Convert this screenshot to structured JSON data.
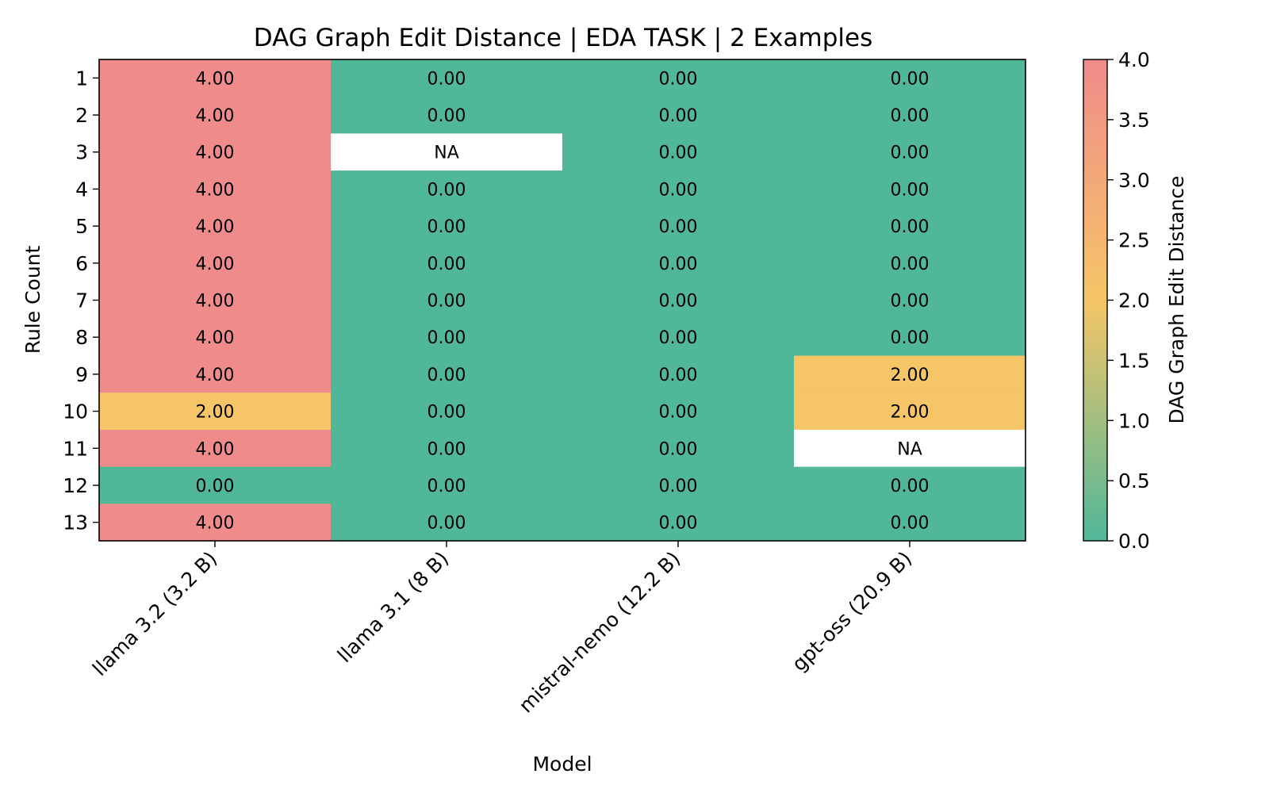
{
  "chart_data": {
    "type": "heatmap",
    "title": "DAG Graph Edit Distance | EDA TASK | 2 Examples",
    "xlabel": "Model",
    "ylabel": "Rule Count",
    "x_categories": [
      "llama 3.2 (3.2 B)",
      "llama 3.1 (8 B)",
      "mistral-nemo (12.2 B)",
      "gpt-oss (20.9 B)"
    ],
    "y_categories": [
      "1",
      "2",
      "3",
      "4",
      "5",
      "6",
      "7",
      "8",
      "9",
      "10",
      "11",
      "12",
      "13"
    ],
    "values": [
      [
        4,
        0,
        0,
        0
      ],
      [
        4,
        0,
        0,
        0
      ],
      [
        4,
        null,
        0,
        0
      ],
      [
        4,
        0,
        0,
        0
      ],
      [
        4,
        0,
        0,
        0
      ],
      [
        4,
        0,
        0,
        0
      ],
      [
        4,
        0,
        0,
        0
      ],
      [
        4,
        0,
        0,
        0
      ],
      [
        4,
        0,
        0,
        2
      ],
      [
        2,
        0,
        0,
        2
      ],
      [
        4,
        0,
        0,
        null
      ],
      [
        0,
        0,
        0,
        0
      ],
      [
        4,
        0,
        0,
        0
      ]
    ],
    "missing_label": "NA",
    "value_format_decimals": 2,
    "colorbar": {
      "label": "DAG Graph Edit Distance",
      "range": [
        0,
        4
      ],
      "ticks": [
        "0.0",
        "0.5",
        "1.0",
        "1.5",
        "2.0",
        "2.5",
        "3.0",
        "3.5",
        "4.0"
      ],
      "colors": [
        "#50b799",
        "#f5c567",
        "#f08b8b"
      ]
    }
  }
}
